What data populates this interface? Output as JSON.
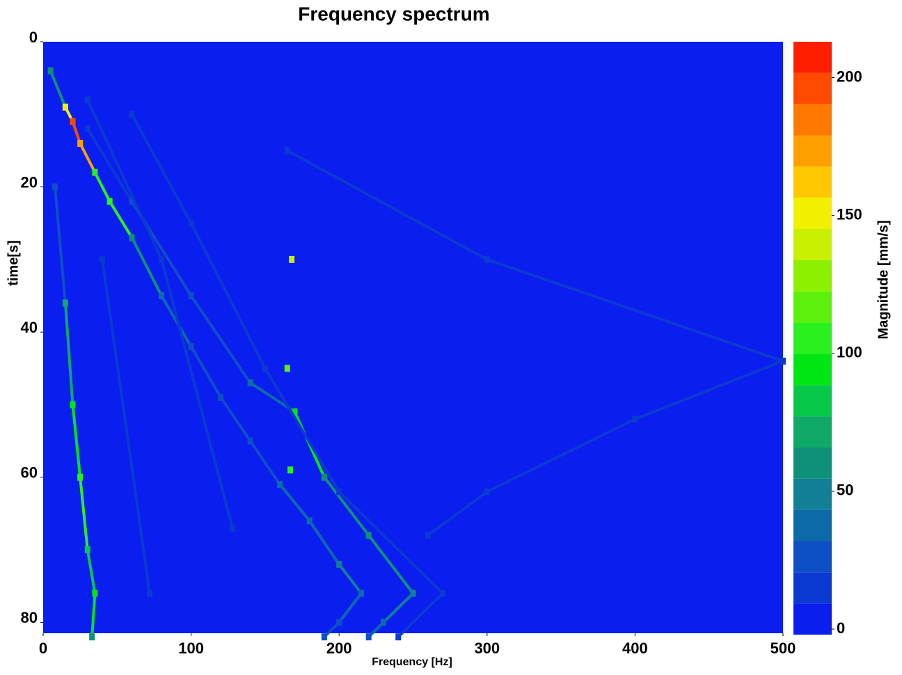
{
  "chart_data": {
    "type": "heatmap",
    "title": "Frequency spectrum",
    "xlabel": "Frequency [Hz]",
    "ylabel": "time[s]",
    "colorbar_label": "Magnitude [mm/s]",
    "xlim": [
      0,
      500
    ],
    "xticks": [
      0,
      100,
      200,
      300,
      400,
      500
    ],
    "ylim": [
      0,
      81.5
    ],
    "yticks": [
      0,
      20,
      40,
      60,
      80
    ],
    "clim": [
      -2,
      213
    ],
    "cticks": [
      0,
      50,
      100,
      150,
      200
    ],
    "colormap": [
      "#0a1ef0",
      "#0a3ad2",
      "#0e4fc6",
      "#0d6aa8",
      "#117f96",
      "#0f9079",
      "#0ea867",
      "#08c84a",
      "#00e614",
      "#2af020",
      "#5cf00a",
      "#8cf000",
      "#c8f000",
      "#f0f000",
      "#ffc800",
      "#ffa000",
      "#ff7800",
      "#ff4a00",
      "#ff1e00"
    ],
    "series": [
      {
        "x": [
          5,
          15,
          20,
          25,
          35,
          45,
          60,
          80,
          100,
          120,
          140,
          160,
          180,
          200,
          215,
          200,
          190
        ],
        "y": [
          4,
          9,
          11,
          14,
          18,
          22,
          27,
          35,
          42,
          49,
          55,
          61,
          66,
          72,
          76,
          80,
          82
        ],
        "values": [
          60,
          150,
          200,
          170,
          110,
          100,
          60,
          40,
          30,
          30,
          30,
          40,
          40,
          45,
          40,
          30,
          25
        ]
      },
      {
        "x": [
          30,
          60,
          100,
          140,
          170,
          190,
          220,
          250,
          230,
          220
        ],
        "y": [
          12,
          22,
          35,
          47,
          51,
          60,
          68,
          76,
          80,
          82
        ],
        "values": [
          20,
          25,
          30,
          40,
          95,
          60,
          55,
          50,
          35,
          30
        ]
      },
      {
        "x": [
          30,
          80,
          128
        ],
        "y": [
          8,
          30,
          67
        ],
        "values": [
          20,
          20,
          20
        ]
      },
      {
        "x": [
          8,
          15,
          20,
          25,
          30,
          35,
          33
        ],
        "y": [
          20,
          36,
          50,
          60,
          70,
          76,
          82
        ],
        "values": [
          30,
          70,
          90,
          100,
          80,
          90,
          60
        ]
      },
      {
        "x": [
          165,
          300,
          500,
          400,
          300,
          260
        ],
        "y": [
          15,
          30,
          44,
          52,
          62,
          68
        ],
        "values": [
          15,
          15,
          20,
          15,
          15,
          15
        ]
      },
      {
        "x": [
          60,
          100,
          150,
          200,
          270,
          240
        ],
        "y": [
          10,
          25,
          45,
          62,
          76,
          82
        ],
        "values": [
          15,
          15,
          15,
          15,
          15,
          10
        ]
      },
      {
        "x": [
          40,
          72
        ],
        "y": [
          30,
          76
        ],
        "values": [
          15,
          15
        ]
      },
      {
        "x": [
          168
        ],
        "y": [
          30
        ],
        "values": [
          140
        ]
      },
      {
        "x": [
          165
        ],
        "y": [
          45
        ],
        "values": [
          120
        ]
      },
      {
        "x": [
          167
        ],
        "y": [
          59
        ],
        "values": [
          110
        ]
      }
    ]
  }
}
